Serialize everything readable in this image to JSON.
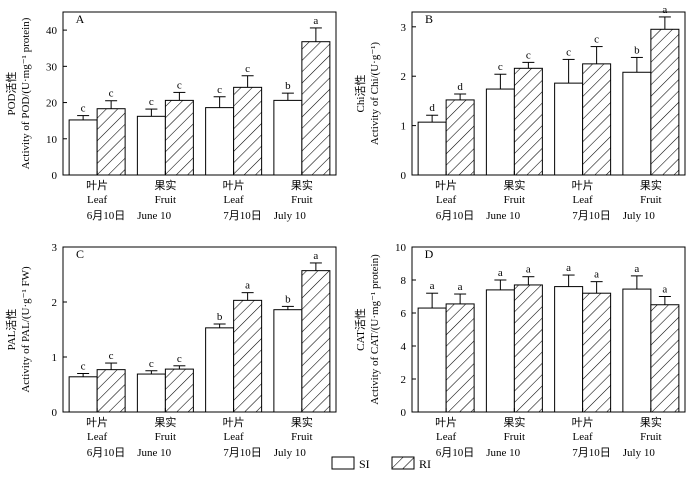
{
  "legend": {
    "items": [
      {
        "label": "SI",
        "pattern": "solid"
      },
      {
        "label": "RI",
        "pattern": "hatch"
      }
    ]
  },
  "colors": {
    "ink": "#000000",
    "background": "#ffffff"
  },
  "chart_data": [
    {
      "type": "bar",
      "panel": "A",
      "ylabel_cn": "POD活性",
      "ylabel_en": "Activity of POD/(U·mg⁻¹ protein)",
      "ylim": [
        0,
        45
      ],
      "yticks": [
        0,
        10,
        20,
        30,
        40
      ],
      "categories": [
        {
          "cn": "叶片",
          "en": "Leaf"
        },
        {
          "cn": "果实",
          "en": "Fruit"
        },
        {
          "cn": "叶片",
          "en": "Leaf"
        },
        {
          "cn": "果实",
          "en": "Fruit"
        }
      ],
      "dates": [
        {
          "cn": "6月10日",
          "en": "June 10"
        },
        {
          "cn": "7月10日",
          "en": "July 10"
        }
      ],
      "series": [
        {
          "name": "SI",
          "values": [
            15.2,
            16.2,
            18.6,
            20.6
          ],
          "errors": [
            1.2,
            2.0,
            3.0,
            2.0
          ],
          "letters": [
            "c",
            "c",
            "c",
            "b"
          ]
        },
        {
          "name": "RI",
          "values": [
            18.3,
            20.6,
            24.2,
            36.8
          ],
          "errors": [
            2.2,
            2.2,
            3.2,
            3.8
          ],
          "letters": [
            "c",
            "c",
            "c",
            "a"
          ]
        }
      ]
    },
    {
      "type": "bar",
      "panel": "B",
      "ylabel_cn": "Chi活性",
      "ylabel_en": "Activity of Chi/(U·g⁻¹)",
      "ylim": [
        0,
        3.3
      ],
      "yticks": [
        0,
        1,
        2,
        3
      ],
      "categories": [
        {
          "cn": "叶片",
          "en": "Leaf"
        },
        {
          "cn": "果实",
          "en": "Fruit"
        },
        {
          "cn": "叶片",
          "en": "Leaf"
        },
        {
          "cn": "果实",
          "en": "Fruit"
        }
      ],
      "dates": [
        {
          "cn": "6月10日",
          "en": "June 10"
        },
        {
          "cn": "7月10日",
          "en": "July 10"
        }
      ],
      "series": [
        {
          "name": "SI",
          "values": [
            1.07,
            1.74,
            1.86,
            2.08
          ],
          "errors": [
            0.14,
            0.3,
            0.48,
            0.3
          ],
          "letters": [
            "d",
            "c",
            "c",
            "b"
          ]
        },
        {
          "name": "RI",
          "values": [
            1.52,
            2.16,
            2.25,
            2.95
          ],
          "errors": [
            0.12,
            0.12,
            0.35,
            0.25
          ],
          "letters": [
            "d",
            "c",
            "c",
            "a"
          ]
        }
      ]
    },
    {
      "type": "bar",
      "panel": "C",
      "ylabel_cn": "PAL活性",
      "ylabel_en": "Activity of PAL/(U·g⁻¹ FW)",
      "ylim": [
        0,
        3
      ],
      "yticks": [
        0,
        1,
        2,
        3
      ],
      "categories": [
        {
          "cn": "叶片",
          "en": "Leaf"
        },
        {
          "cn": "果实",
          "en": "Fruit"
        },
        {
          "cn": "叶片",
          "en": "Leaf"
        },
        {
          "cn": "果实",
          "en": "Fruit"
        }
      ],
      "dates": [
        {
          "cn": "6月10日",
          "en": "June 10"
        },
        {
          "cn": "7月10日",
          "en": "July 10"
        }
      ],
      "series": [
        {
          "name": "SI",
          "values": [
            0.64,
            0.69,
            1.53,
            1.86
          ],
          "errors": [
            0.06,
            0.06,
            0.07,
            0.06
          ],
          "letters": [
            "c",
            "c",
            "b",
            "b"
          ]
        },
        {
          "name": "RI",
          "values": [
            0.77,
            0.78,
            2.03,
            2.57
          ],
          "errors": [
            0.12,
            0.06,
            0.14,
            0.14
          ],
          "letters": [
            "c",
            "c",
            "a",
            "a"
          ]
        }
      ]
    },
    {
      "type": "bar",
      "panel": "D",
      "ylabel_cn": "CAT活性",
      "ylabel_en": "Activity of CAT/(U·mg⁻¹ protein)",
      "ylim": [
        0,
        10
      ],
      "yticks": [
        0,
        2,
        4,
        6,
        8,
        10
      ],
      "categories": [
        {
          "cn": "叶片",
          "en": "Leaf"
        },
        {
          "cn": "果实",
          "en": "Fruit"
        },
        {
          "cn": "叶片",
          "en": "Leaf"
        },
        {
          "cn": "果实",
          "en": "Fruit"
        }
      ],
      "dates": [
        {
          "cn": "6月10日",
          "en": "June 10"
        },
        {
          "cn": "7月10日",
          "en": "July 10"
        }
      ],
      "series": [
        {
          "name": "SI",
          "values": [
            6.3,
            7.4,
            7.6,
            7.45
          ],
          "errors": [
            0.9,
            0.6,
            0.7,
            0.8
          ],
          "letters": [
            "a",
            "a",
            "a",
            "a"
          ]
        },
        {
          "name": "RI",
          "values": [
            6.55,
            7.7,
            7.2,
            6.5
          ],
          "errors": [
            0.6,
            0.5,
            0.7,
            0.5
          ],
          "letters": [
            "a",
            "a",
            "a",
            "a"
          ]
        }
      ]
    }
  ]
}
